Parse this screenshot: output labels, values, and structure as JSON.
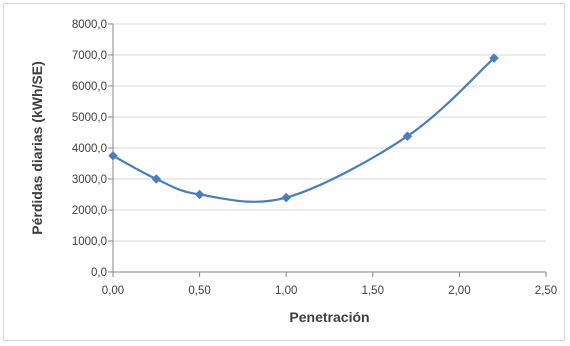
{
  "chart_data": {
    "type": "line",
    "title": "",
    "xlabel": "Penetración",
    "ylabel": "Pérdidas diarias (kWh/SE)",
    "xlim": [
      0,
      2.5
    ],
    "ylim": [
      0,
      8000
    ],
    "x_ticks": [
      "0,00",
      "0,50",
      "1,00",
      "1,50",
      "2,00",
      "2,50"
    ],
    "x_tick_values": [
      0,
      0.5,
      1.0,
      1.5,
      2.0,
      2.5
    ],
    "y_ticks": [
      "0,0",
      "1000,0",
      "2000,0",
      "3000,0",
      "4000,0",
      "5000,0",
      "6000,0",
      "7000,0",
      "8000,0"
    ],
    "y_tick_values": [
      0,
      1000,
      2000,
      3000,
      4000,
      5000,
      6000,
      7000,
      8000
    ],
    "grid": "horizontal",
    "legend": "none",
    "series": [
      {
        "color": "#4a7ebb",
        "marker": "diamond",
        "smooth": true,
        "x": [
          0.0,
          0.25,
          0.5,
          1.0,
          1.7,
          2.2
        ],
        "y": [
          3750,
          3000,
          2500,
          2400,
          4380,
          6900
        ]
      }
    ],
    "colors": {
      "gridline": "#d9d9d9",
      "axis": "#868686",
      "series": "#4a7ebb"
    }
  }
}
